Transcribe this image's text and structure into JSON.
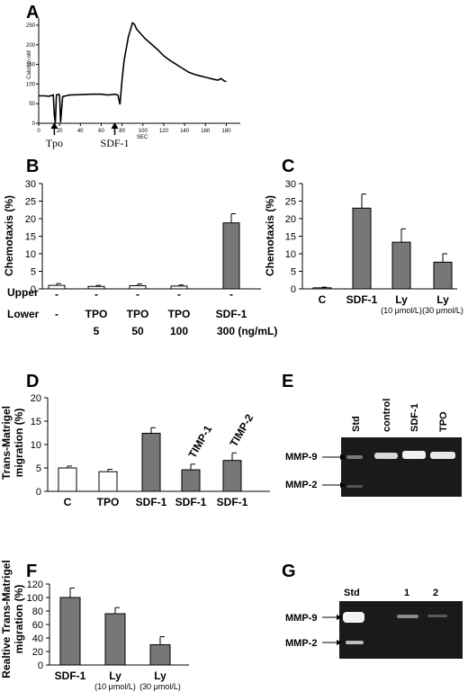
{
  "panels": {
    "A": "A",
    "B": "B",
    "C": "C",
    "D": "D",
    "E": "E",
    "F": "F",
    "G": "G"
  },
  "chart_data": [
    {
      "id": "A",
      "type": "line",
      "ylabel": "Calcium nM",
      "xlabel": "SEC",
      "xlim": [
        0,
        190
      ],
      "ylim": [
        0,
        250
      ],
      "xticks": [
        0,
        20,
        40,
        60,
        80,
        100,
        120,
        140,
        160,
        180
      ],
      "yticks": [
        0,
        50,
        100,
        150,
        200,
        250
      ],
      "annotations": [
        "Tpo",
        "SDF-1"
      ],
      "annotation_x": [
        15,
        73
      ],
      "x": [
        0,
        5,
        10,
        14,
        15,
        16,
        17,
        19,
        20,
        21,
        23,
        26,
        30,
        40,
        50,
        60,
        66,
        70,
        73,
        76,
        78,
        80,
        82,
        86,
        90,
        92,
        94,
        98,
        102,
        108,
        114,
        120,
        126,
        132,
        138,
        144,
        150,
        156,
        162,
        168,
        172,
        175,
        178,
        180
      ],
      "y": [
        70,
        70,
        69,
        72,
        20,
        0,
        72,
        74,
        72,
        2,
        68,
        70,
        72,
        73,
        74,
        74,
        72,
        73,
        74,
        72,
        48,
        110,
        160,
        220,
        256,
        252,
        240,
        228,
        216,
        202,
        188,
        172,
        160,
        150,
        140,
        130,
        124,
        120,
        116,
        112,
        110,
        114,
        108,
        106
      ]
    },
    {
      "id": "B",
      "type": "bar",
      "ylabel": "Chemotaxis (%)",
      "ylim": [
        0,
        30
      ],
      "yticks": [
        0,
        5,
        10,
        15,
        20,
        25,
        30
      ],
      "values": [
        1.0,
        0.7,
        0.9,
        0.8,
        18.8
      ],
      "errors": [
        0.5,
        0.3,
        0.5,
        0.3,
        2.6
      ],
      "fills": [
        "#ffffff",
        "#ffffff",
        "#ffffff",
        "#ffffff",
        "#777777"
      ],
      "row_labels": [
        "Upper",
        "Lower"
      ],
      "upper": [
        "-",
        "-",
        "-",
        "-",
        "-"
      ],
      "lower": [
        "-",
        "TPO",
        "TPO",
        "TPO",
        "SDF-1"
      ],
      "dose": [
        "",
        "5",
        "50",
        "100",
        "300 (ng/mL)"
      ]
    },
    {
      "id": "C",
      "type": "bar",
      "ylabel": "Chemotaxis (%)",
      "ylim": [
        0,
        30
      ],
      "yticks": [
        0,
        5,
        10,
        15,
        20,
        25,
        30
      ],
      "categories": [
        "C",
        "SDF-1",
        "Ly",
        "Ly"
      ],
      "sublabels": [
        "",
        "",
        "(10 μmol/L)",
        "(30 μmol/L)"
      ],
      "values": [
        0.3,
        23.0,
        13.3,
        7.6
      ],
      "errors": [
        0.2,
        4.0,
        3.8,
        2.4
      ],
      "fills": [
        "#ffffff",
        "#777777",
        "#777777",
        "#777777"
      ]
    },
    {
      "id": "D",
      "type": "bar",
      "ylabel_lines": [
        "Trans-Matrigel",
        "migration (%)"
      ],
      "ylim": [
        0,
        20
      ],
      "yticks": [
        0,
        5,
        10,
        15,
        20
      ],
      "categories": [
        "C",
        "TPO",
        "SDF-1",
        "SDF-1",
        "SDF-1"
      ],
      "bar_annotations": [
        "",
        "",
        "",
        "TIMP-1",
        "TIMP-2"
      ],
      "values": [
        5.0,
        4.2,
        12.4,
        4.6,
        6.6
      ],
      "errors": [
        0.4,
        0.5,
        1.2,
        1.2,
        1.6
      ],
      "fills": [
        "#ffffff",
        "#ffffff",
        "#777777",
        "#777777",
        "#777777"
      ]
    },
    {
      "id": "F",
      "type": "bar",
      "ylabel_lines": [
        "Realtive Trans-Matrigel",
        "migration (%)"
      ],
      "ylim": [
        0,
        120
      ],
      "yticks": [
        0,
        20,
        40,
        60,
        80,
        100,
        120
      ],
      "categories": [
        "SDF-1",
        "Ly",
        "Ly"
      ],
      "sublabels": [
        "",
        "(10 μmol/L)",
        "(30 μmol/L)"
      ],
      "values": [
        100,
        76,
        30
      ],
      "errors": [
        14,
        9,
        12
      ],
      "fills": [
        "#777777",
        "#777777",
        "#777777"
      ]
    }
  ],
  "gel_E": {
    "lanes": [
      "Std",
      "control",
      "SDF-1",
      "TPO"
    ],
    "bands": [
      "MMP-9",
      "MMP-2"
    ]
  },
  "gel_G": {
    "lanes": [
      "Std",
      "1",
      "2"
    ],
    "bands": [
      "MMP-9",
      "MMP-2"
    ]
  }
}
